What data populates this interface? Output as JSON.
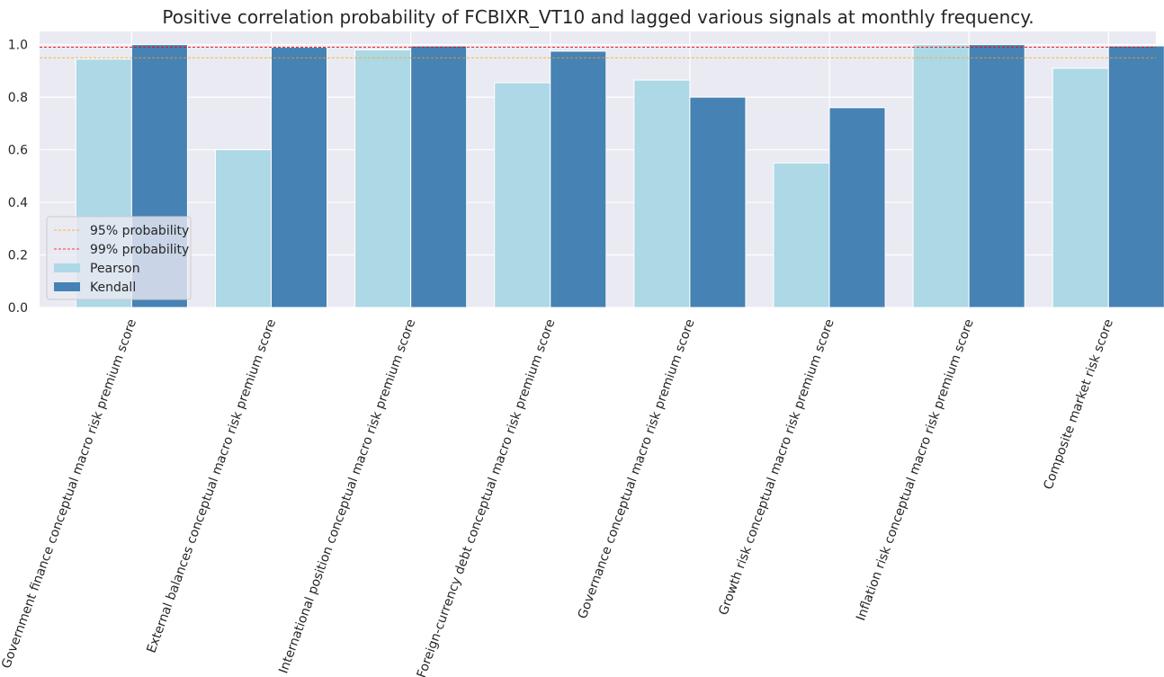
{
  "chart_data": {
    "type": "bar",
    "title": "Positive correlation probability of FCBIXR_VT10 and lagged various signals at monthly frequency.",
    "xlabel": "",
    "ylabel": "",
    "categories": [
      "Government finance conceptual macro risk premium score",
      "External balances conceptual macro risk premium score",
      "International position conceptual macro risk premium score",
      "Foreign-currency debt conceptual macro risk premium score",
      "Governance conceptual macro risk premium score",
      "Growth risk conceptual macro risk premium score",
      "Inflation risk conceptual macro risk premium score",
      "Composite market risk score"
    ],
    "series": [
      {
        "name": "Pearson",
        "color": "#add8e6",
        "values": [
          0.945,
          0.6,
          0.98,
          0.855,
          0.865,
          0.55,
          1.0,
          0.91
        ]
      },
      {
        "name": "Kendall",
        "color": "#4682b4",
        "values": [
          1.0,
          0.99,
          0.995,
          0.975,
          0.8,
          0.76,
          1.0,
          0.995
        ]
      }
    ],
    "reference_lines": [
      {
        "name": "95% probability",
        "value": 0.95,
        "color": "#ffa500"
      },
      {
        "name": "99% probability",
        "value": 0.99,
        "color": "#ff0000"
      }
    ],
    "ylim": [
      0,
      1.05
    ],
    "yticks": [
      "0.0",
      "0.2",
      "0.4",
      "0.6",
      "0.8",
      "1.0"
    ],
    "legend_position": "lower-left",
    "grid": true,
    "background_color": "#eaeaf2"
  }
}
